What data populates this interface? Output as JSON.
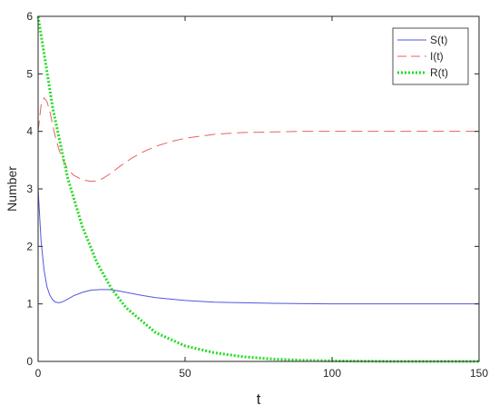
{
  "chart_data": {
    "type": "line",
    "xlabel": "t",
    "ylabel": "Number",
    "xlim": [
      0,
      150
    ],
    "ylim": [
      0,
      6
    ],
    "xticks": [
      "0",
      "50",
      "100",
      "150"
    ],
    "yticks": [
      "0",
      "1",
      "2",
      "3",
      "4",
      "5",
      "6"
    ],
    "grid": false,
    "legend_position": "top-right",
    "series": [
      {
        "name": "S(t)",
        "color": "#5555dd",
        "style": "solid",
        "x": [
          0,
          1,
          2,
          3,
          4,
          5,
          6,
          7,
          8,
          10,
          12,
          15,
          18,
          21,
          24,
          27,
          30,
          35,
          40,
          50,
          60,
          70,
          80,
          90,
          100,
          110,
          120,
          130,
          140,
          150
        ],
        "y": [
          3.0,
          2.1,
          1.6,
          1.3,
          1.15,
          1.07,
          1.03,
          1.02,
          1.03,
          1.08,
          1.14,
          1.2,
          1.24,
          1.25,
          1.25,
          1.23,
          1.2,
          1.15,
          1.11,
          1.06,
          1.03,
          1.02,
          1.01,
          1.005,
          1.0,
          1.0,
          1.0,
          1.0,
          1.0,
          1.0
        ]
      },
      {
        "name": "I(t)",
        "color": "#e86060",
        "style": "dashed",
        "x": [
          0,
          1,
          2,
          3,
          4,
          5,
          6,
          7,
          8,
          10,
          12,
          15,
          18,
          20,
          22,
          25,
          28,
          32,
          36,
          40,
          45,
          50,
          60,
          70,
          80,
          90,
          100,
          120,
          150
        ],
        "y": [
          4.0,
          4.45,
          4.58,
          4.52,
          4.35,
          4.1,
          3.88,
          3.7,
          3.55,
          3.35,
          3.24,
          3.16,
          3.13,
          3.14,
          3.18,
          3.28,
          3.4,
          3.54,
          3.65,
          3.74,
          3.82,
          3.88,
          3.95,
          3.98,
          3.99,
          4.0,
          4.0,
          4.0,
          4.0
        ]
      },
      {
        "name": "R(t)",
        "color": "#22dd22",
        "style": "dotted",
        "x": [
          0,
          5,
          10,
          15,
          20,
          25,
          30,
          40,
          50,
          60,
          70,
          80,
          90,
          100,
          120,
          150
        ],
        "y": [
          6.0,
          4.4,
          3.2,
          2.35,
          1.72,
          1.26,
          0.93,
          0.5,
          0.27,
          0.15,
          0.08,
          0.04,
          0.02,
          0.01,
          0.0,
          0.0
        ]
      }
    ]
  }
}
